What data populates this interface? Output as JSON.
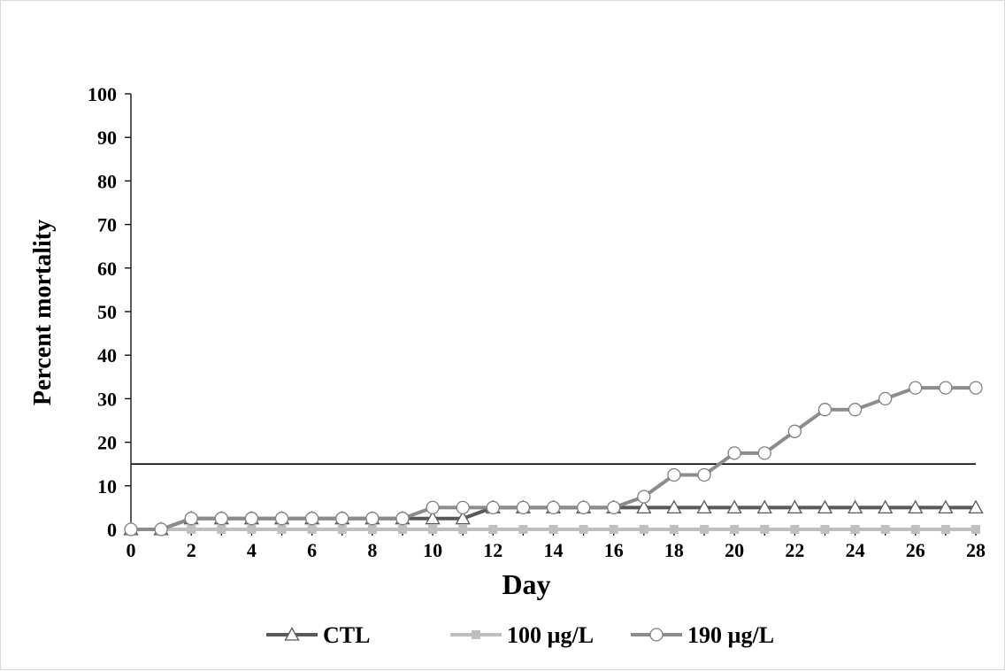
{
  "chart_data": {
    "type": "line",
    "title": "",
    "xlabel": "Day",
    "ylabel": "Percent mortality",
    "xlim": [
      0,
      28
    ],
    "ylim": [
      0,
      100
    ],
    "x_ticks": [
      0,
      2,
      4,
      6,
      8,
      10,
      12,
      14,
      16,
      18,
      20,
      22,
      24,
      26,
      28
    ],
    "y_ticks": [
      0,
      10,
      20,
      30,
      40,
      50,
      60,
      70,
      80,
      90,
      100
    ],
    "grid": false,
    "legend_position": "bottom",
    "reference_line": {
      "y": 15
    },
    "x": [
      0,
      1,
      2,
      3,
      4,
      5,
      6,
      7,
      8,
      9,
      10,
      11,
      12,
      13,
      14,
      15,
      16,
      17,
      18,
      19,
      20,
      21,
      22,
      23,
      24,
      25,
      26,
      27,
      28
    ],
    "series": [
      {
        "name": "CTL",
        "marker": "triangle",
        "color": "#595959",
        "values": [
          0,
          0,
          2.5,
          2.5,
          2.5,
          2.5,
          2.5,
          2.5,
          2.5,
          2.5,
          2.5,
          2.5,
          5,
          5,
          5,
          5,
          5,
          5,
          5,
          5,
          5,
          5,
          5,
          5,
          5,
          5,
          5,
          5,
          5
        ]
      },
      {
        "name": "100 µg/L",
        "marker": "square",
        "color": "#bfbfbf",
        "values": [
          0,
          0,
          0,
          0,
          0,
          0,
          0,
          0,
          0,
          0,
          0,
          0,
          0,
          0,
          0,
          0,
          0,
          0,
          0,
          0,
          0,
          0,
          0,
          0,
          0,
          0,
          0,
          0,
          0
        ]
      },
      {
        "name": "190 µg/L",
        "marker": "circle",
        "color": "#8c8c8c",
        "values": [
          0,
          0,
          2.5,
          2.5,
          2.5,
          2.5,
          2.5,
          2.5,
          2.5,
          2.5,
          5,
          5,
          5,
          5,
          5,
          5,
          5,
          7.5,
          12.5,
          12.5,
          17.5,
          17.5,
          22.5,
          27.5,
          27.5,
          30,
          32.5,
          32.5,
          32.5
        ]
      }
    ]
  }
}
